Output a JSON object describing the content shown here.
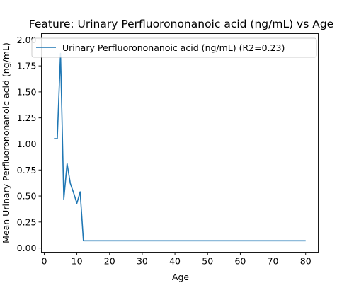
{
  "chart_data": {
    "type": "line",
    "title": "Feature: Urinary Perfluorononanoic acid (ng/mL) vs Age",
    "xlabel": "Age",
    "ylabel": "Mean Urinary Perfluorononanoic acid (ng/mL)",
    "xlim": [
      -0.85,
      83.85
    ],
    "ylim": [
      -0.04,
      2.06
    ],
    "xticks": [
      0,
      10,
      20,
      30,
      40,
      50,
      60,
      70,
      80
    ],
    "yticks": [
      0.0,
      0.25,
      0.5,
      0.75,
      1.0,
      1.25,
      1.5,
      1.75,
      2.0
    ],
    "ytick_labels": [
      "0.00",
      "0.25",
      "0.50",
      "0.75",
      "1.00",
      "1.25",
      "1.50",
      "1.75",
      "2.00"
    ],
    "grid": false,
    "legend_position": "top-left",
    "series": [
      {
        "name": "Urinary Perfluorononanoic acid (ng/mL) (R2=0.23)",
        "color": "#1f77b4",
        "x": [
          3,
          4,
          5,
          6,
          7,
          8,
          9,
          10,
          11,
          12,
          13,
          14,
          15,
          16,
          17,
          18,
          19,
          20,
          21,
          22,
          23,
          24,
          25,
          26,
          27,
          28,
          29,
          30,
          31,
          32,
          33,
          34,
          35,
          36,
          37,
          38,
          39,
          40,
          41,
          42,
          43,
          44,
          45,
          46,
          47,
          48,
          49,
          50,
          51,
          52,
          53,
          54,
          55,
          56,
          57,
          58,
          59,
          60,
          61,
          62,
          63,
          64,
          65,
          66,
          67,
          68,
          69,
          70,
          71,
          72,
          73,
          74,
          75,
          76,
          77,
          78,
          79,
          80
        ],
        "y": [
          1.05,
          1.05,
          1.87,
          0.47,
          0.81,
          0.62,
          0.53,
          0.43,
          0.54,
          0.07,
          0.07,
          0.07,
          0.07,
          0.07,
          0.07,
          0.07,
          0.07,
          0.07,
          0.07,
          0.07,
          0.07,
          0.07,
          0.07,
          0.07,
          0.07,
          0.07,
          0.07,
          0.07,
          0.07,
          0.07,
          0.07,
          0.07,
          0.07,
          0.07,
          0.07,
          0.07,
          0.07,
          0.07,
          0.07,
          0.07,
          0.07,
          0.07,
          0.07,
          0.07,
          0.07,
          0.07,
          0.07,
          0.07,
          0.07,
          0.07,
          0.07,
          0.07,
          0.07,
          0.07,
          0.07,
          0.07,
          0.07,
          0.07,
          0.07,
          0.07,
          0.07,
          0.07,
          0.07,
          0.07,
          0.07,
          0.07,
          0.07,
          0.07,
          0.07,
          0.07,
          0.07,
          0.07,
          0.07,
          0.07,
          0.07,
          0.07,
          0.07,
          0.07
        ]
      }
    ]
  }
}
